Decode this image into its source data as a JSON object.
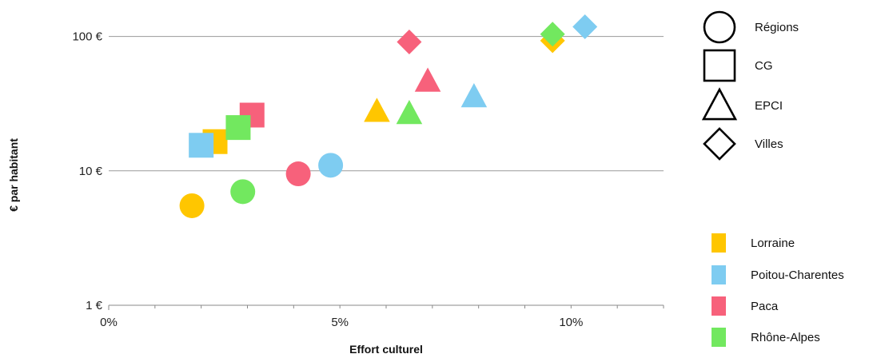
{
  "chart_data": {
    "type": "scatter",
    "xlabel": "Effort culturel",
    "ylabel": "€ par habitant",
    "xlim": [
      0,
      12
    ],
    "ylim": [
      1,
      150
    ],
    "y_scale": "log",
    "x_ticks": [
      {
        "value": 0,
        "label": "0%"
      },
      {
        "value": 5,
        "label": "5%"
      },
      {
        "value": 10,
        "label": "10%"
      }
    ],
    "y_ticks": [
      {
        "value": 1,
        "label": "1 €"
      },
      {
        "value": 10,
        "label": "10 €"
      },
      {
        "value": 100,
        "label": "100 €"
      }
    ],
    "grid": true,
    "shape_legend": [
      {
        "shape": "circle",
        "label": "Régions"
      },
      {
        "shape": "square",
        "label": "CG"
      },
      {
        "shape": "triangle",
        "label": "EPCI"
      },
      {
        "shape": "diamond",
        "label": "Villes"
      }
    ],
    "series": [
      {
        "name": "Lorraine",
        "color": "#FFC600",
        "points": [
          {
            "shape": "circle",
            "x": 1.8,
            "y": 5.5
          },
          {
            "shape": "square",
            "x": 2.3,
            "y": 16.5
          },
          {
            "shape": "triangle",
            "x": 5.8,
            "y": 28
          },
          {
            "shape": "diamond",
            "x": 9.6,
            "y": 93
          }
        ]
      },
      {
        "name": "Poitou-Charentes",
        "color": "#7ECCF1",
        "points": [
          {
            "shape": "circle",
            "x": 4.8,
            "y": 11
          },
          {
            "shape": "square",
            "x": 2.0,
            "y": 15.5
          },
          {
            "shape": "triangle",
            "x": 7.9,
            "y": 36
          },
          {
            "shape": "diamond",
            "x": 10.3,
            "y": 118
          }
        ]
      },
      {
        "name": "Paca",
        "color": "#F7617B",
        "points": [
          {
            "shape": "circle",
            "x": 4.1,
            "y": 9.5
          },
          {
            "shape": "square",
            "x": 3.1,
            "y": 26
          },
          {
            "shape": "triangle",
            "x": 6.9,
            "y": 47
          },
          {
            "shape": "diamond",
            "x": 6.5,
            "y": 91
          }
        ]
      },
      {
        "name": "Rhône-Alpes",
        "color": "#72E85F",
        "points": [
          {
            "shape": "circle",
            "x": 2.9,
            "y": 7
          },
          {
            "shape": "square",
            "x": 2.8,
            "y": 21
          },
          {
            "shape": "triangle",
            "x": 6.5,
            "y": 27
          },
          {
            "shape": "diamond",
            "x": 9.6,
            "y": 104
          }
        ]
      }
    ]
  }
}
